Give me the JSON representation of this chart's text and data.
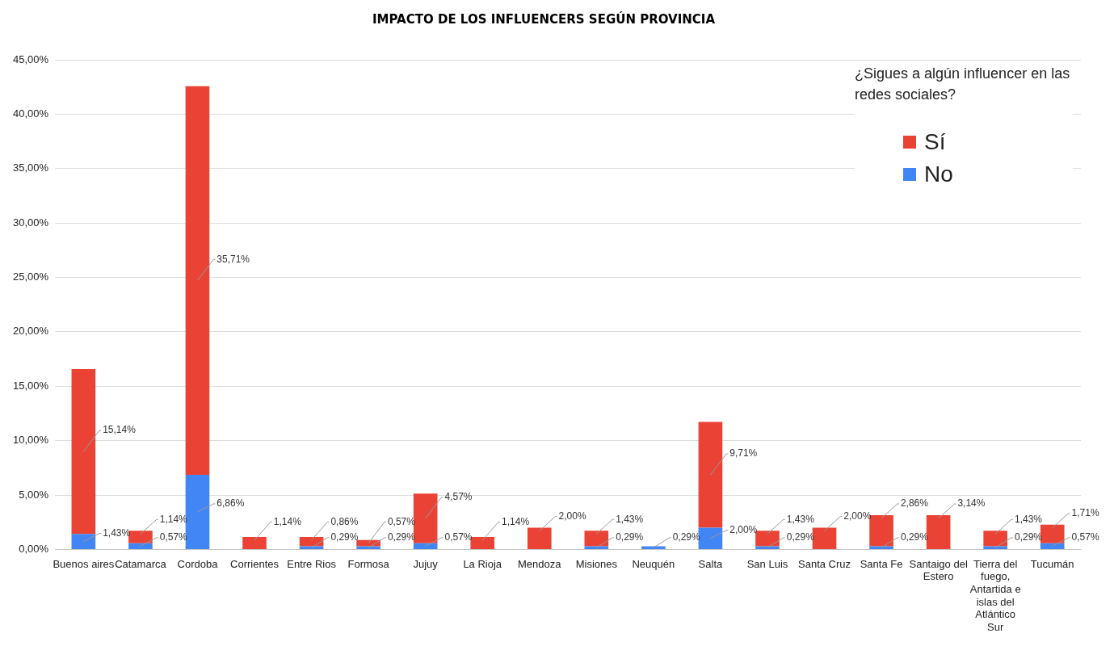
{
  "chart_data": {
    "type": "bar",
    "title": "IMPACTO DE LOS INFLUENCERS SEGÚN PROVINCIA",
    "legend_title": "¿Sigues a algún influencer en las redes sociales?",
    "categories": [
      "Buenos aires",
      "Catamarca",
      "Cordoba",
      "Corrientes",
      "Entre Rios",
      "Formosa",
      "Jujuy",
      "La Rioja",
      "Mendoza",
      "Misiones",
      "Neuquén",
      "Salta",
      "San Luis",
      "Santa Cruz",
      "Santa Fe",
      "Santaigo del Estero",
      "Tierra del fuego, Antartida e islas del Atlántico Sur",
      "Tucumán"
    ],
    "stacked": true,
    "legend": "top right",
    "grid": "y",
    "ylim": [
      0,
      45
    ],
    "yticks": [
      {
        "value": 0,
        "label": "0,00%"
      },
      {
        "value": 5,
        "label": "5,00%"
      },
      {
        "value": 10,
        "label": "10,00%"
      },
      {
        "value": 15,
        "label": "15,00%"
      },
      {
        "value": 20,
        "label": "20,00%"
      },
      {
        "value": 25,
        "label": "25,00%"
      },
      {
        "value": 30,
        "label": "30,00%"
      },
      {
        "value": 35,
        "label": "35,00%"
      },
      {
        "value": 40,
        "label": "40,00%"
      },
      {
        "value": 45,
        "label": "45,00%"
      }
    ],
    "series": [
      {
        "name": "No",
        "color": "#4285f4",
        "values": [
          1.43,
          0.57,
          6.86,
          null,
          0.29,
          0.29,
          0.57,
          null,
          null,
          0.29,
          0.29,
          2.0,
          0.29,
          null,
          0.29,
          null,
          0.29,
          0.57
        ],
        "value_labels": [
          "1,43%",
          "0,57%",
          "6,86%",
          null,
          "0,29%",
          "0,29%",
          "0,57%",
          null,
          null,
          "0,29%",
          "0,29%",
          "2,00%",
          "0,29%",
          null,
          "0,29%",
          null,
          "0,29%",
          "0,57%"
        ]
      },
      {
        "name": "Sí",
        "color": "#ea4335",
        "values": [
          15.14,
          1.14,
          35.71,
          1.14,
          0.86,
          0.57,
          4.57,
          1.14,
          2.0,
          1.43,
          null,
          9.71,
          1.43,
          2.0,
          2.86,
          3.14,
          1.43,
          1.71
        ],
        "value_labels": [
          "15,14%",
          "1,14%",
          "35,71%",
          "1,14%",
          "0,86%",
          "0,57%",
          "4,57%",
          "1,14%",
          "2,00%",
          "1,43%",
          null,
          "9,71%",
          "1,43%",
          "2,00%",
          "2,86%",
          "3,14%",
          "1,43%",
          "1,71%"
        ]
      }
    ]
  }
}
